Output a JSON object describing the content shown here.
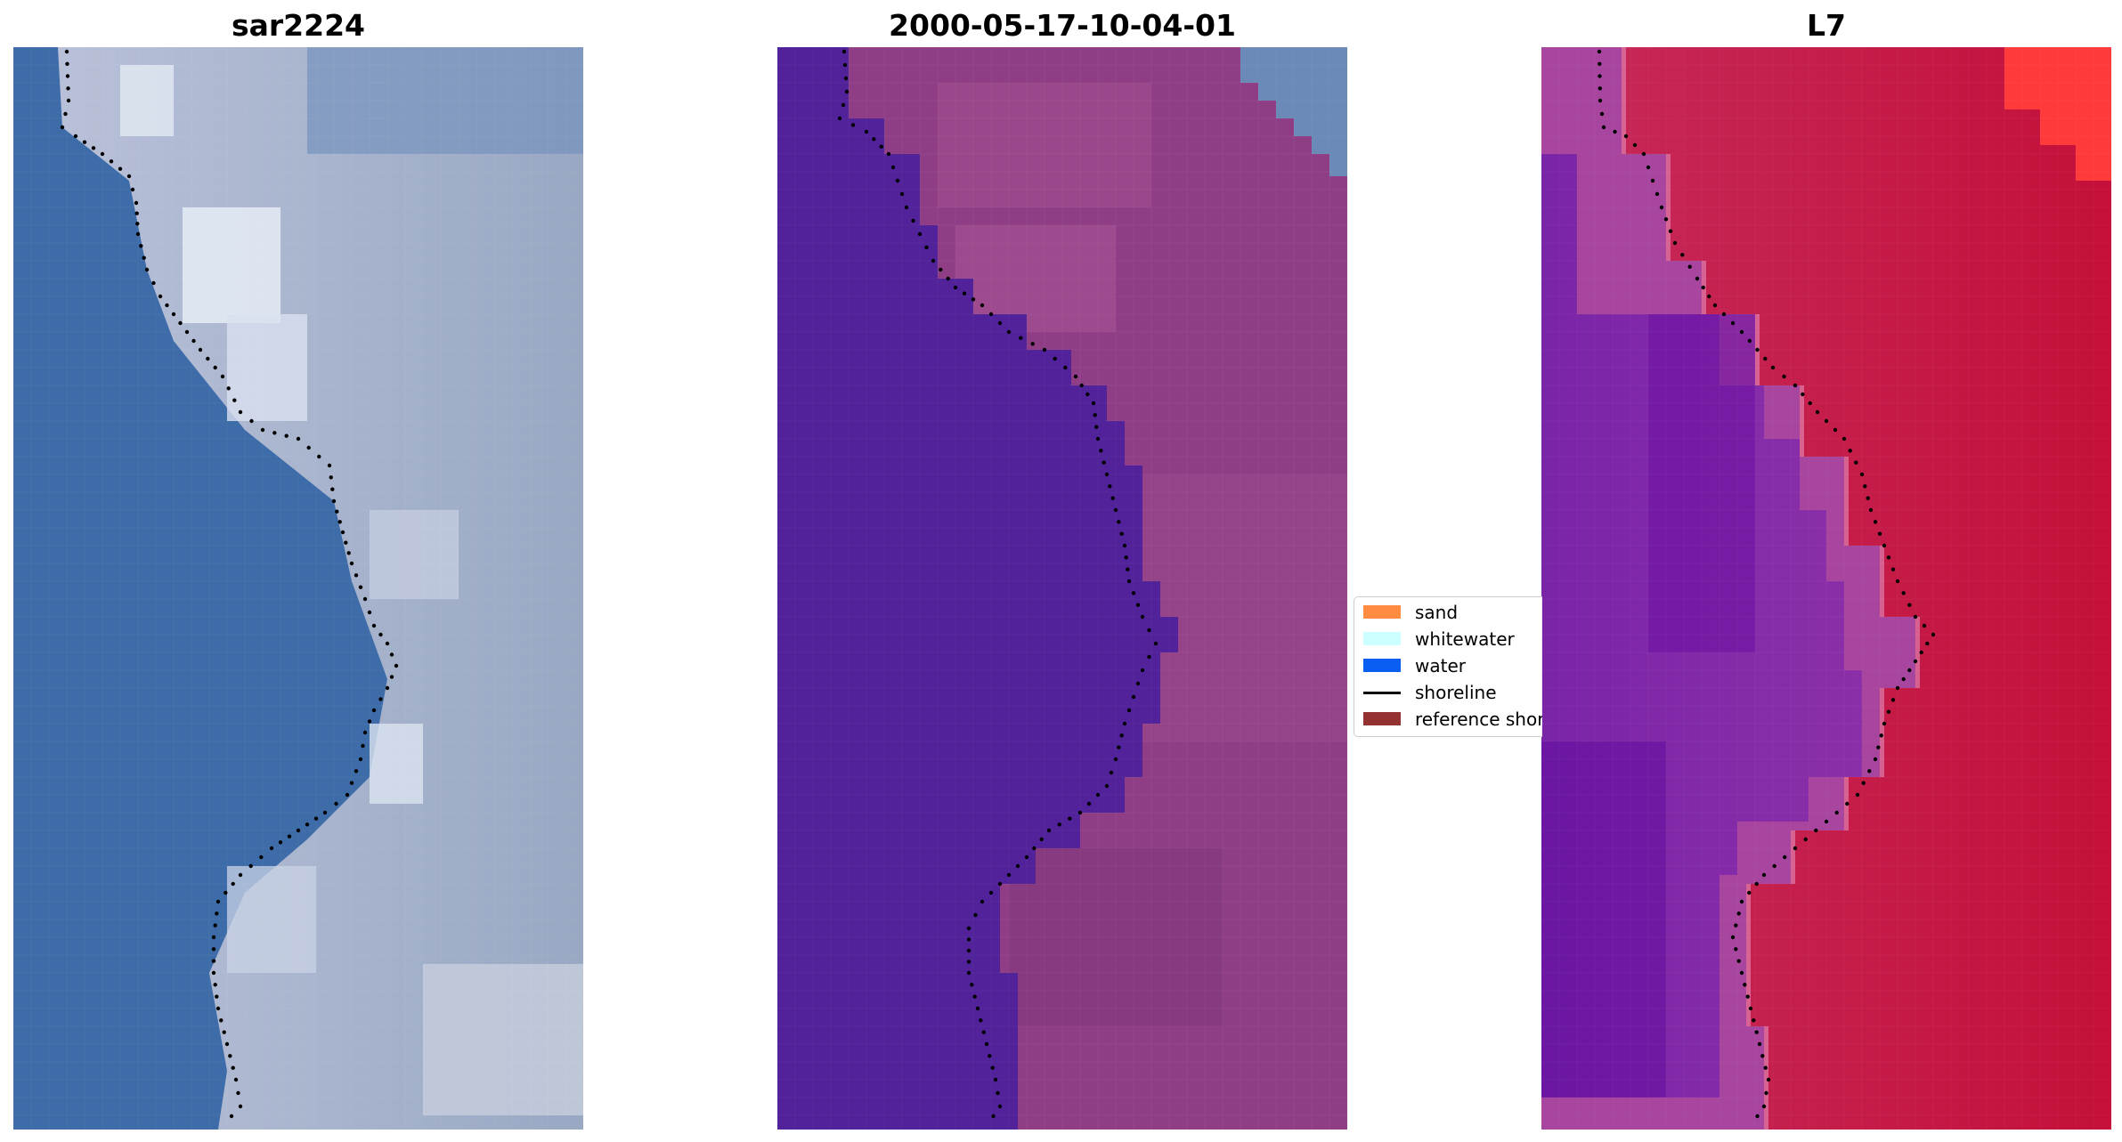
{
  "panels": [
    {
      "title": "sar2224"
    },
    {
      "title": "2000-05-17-10-04-01"
    },
    {
      "title": "L7"
    }
  ],
  "legend": {
    "items": [
      {
        "label": "sand",
        "color": "#ff8c40",
        "kind": "patch"
      },
      {
        "label": "whitewater",
        "color": "#ccffff",
        "kind": "patch"
      },
      {
        "label": "water",
        "color": "#0a5ef2",
        "kind": "patch"
      },
      {
        "label": "shoreline",
        "color": "#000000",
        "kind": "line"
      },
      {
        "label": "reference shoreline",
        "color": "#943232",
        "kind": "patch"
      }
    ]
  },
  "colors": {
    "rgb_water": "#3f6ea9",
    "rgb_land": "#a7b3c9",
    "class_water": "#51229a",
    "class_land": "#8f3e86",
    "index_water": "#6b129c",
    "index_land": "#c3143f",
    "shoreline_points": "#000000"
  }
}
